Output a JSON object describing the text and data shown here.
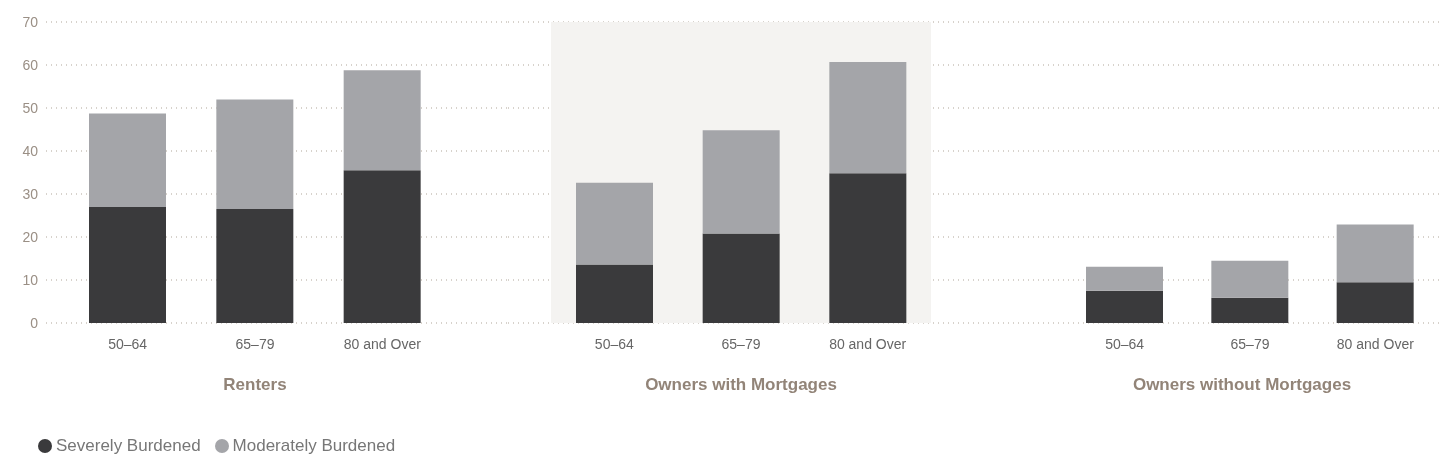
{
  "chart_data": [
    {
      "type": "bar",
      "stacked": true,
      "title": "Renters",
      "categories": [
        "50–64",
        "65–79",
        "80 and Over"
      ],
      "series": [
        {
          "name": "Severely Burdened",
          "color": "#3a3a3c",
          "values": [
            27.0,
            26.5,
            35.5
          ]
        },
        {
          "name": "Moderately Burdened",
          "color": "#a4a5a9",
          "values": [
            21.7,
            25.5,
            23.3
          ]
        }
      ],
      "ylim": [
        0,
        70
      ],
      "yticks": [
        0,
        10,
        20,
        30,
        40,
        50,
        60,
        70
      ],
      "grid": "y",
      "legend": "bottom left"
    },
    {
      "type": "bar",
      "stacked": true,
      "title": "Owners with Mortgages",
      "categories": [
        "50–64",
        "65–79",
        "80 and Over"
      ],
      "series": [
        {
          "color": "#3a3a3c",
          "values": [
            13.6,
            20.8,
            34.8
          ]
        },
        {
          "color": "#a4a5a9",
          "values": [
            19.0,
            24.0,
            25.9
          ]
        }
      ],
      "ylim": [
        0,
        70
      ],
      "yticks": [
        0,
        10,
        20,
        30,
        40,
        50,
        60,
        70
      ],
      "grid": "y",
      "tick_labels": "x",
      "bands": [
        {
          "axis": "x",
          "from": "50–64",
          "to": "80 and Over",
          "color": "#f4f3f1"
        }
      ]
    },
    {
      "type": "bar",
      "stacked": true,
      "title": "Owners without Mortgages",
      "categories": [
        "50–64",
        "65–79",
        "80 and Over"
      ],
      "series": [
        {
          "color": "#3a3a3c",
          "values": [
            7.5,
            5.9,
            9.5
          ]
        },
        {
          "color": "#a4a5a9",
          "values": [
            5.6,
            8.6,
            13.4
          ]
        }
      ],
      "ylim": [
        0,
        70
      ],
      "yticks": [
        0,
        10,
        20,
        30,
        40,
        50,
        60,
        70
      ],
      "grid": "y",
      "tick_labels": "x"
    }
  ]
}
